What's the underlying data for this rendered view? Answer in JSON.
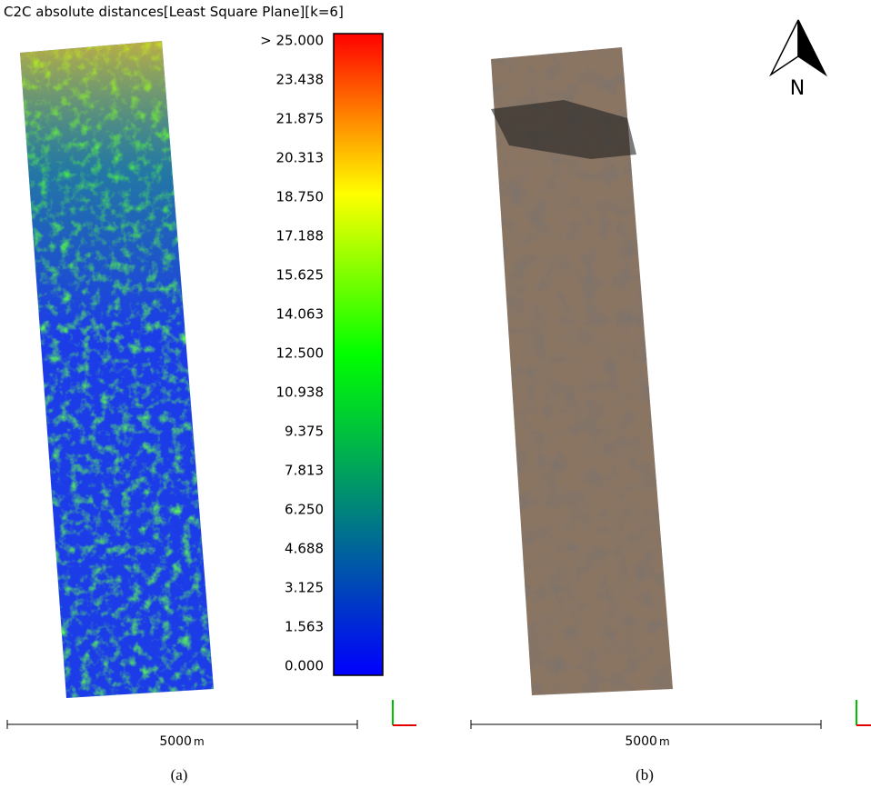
{
  "panel_a": {
    "title": "C2C absolute distances[Least Square Plane][k=6]",
    "colorbar": {
      "labels": [
        "> 25.000",
        "23.438",
        "21.875",
        "20.313",
        "18.750",
        "17.188",
        "15.625",
        "14.063",
        "12.500",
        "10.938",
        "9.375",
        "7.813",
        "6.250",
        "4.688",
        "3.125",
        "1.563",
        "0.000"
      ]
    },
    "scale_bar": {
      "value": "5000",
      "unit": "m"
    },
    "caption": "(a)"
  },
  "panel_b": {
    "north_label": "N",
    "scale_bar": {
      "value": "5000",
      "unit": "m"
    },
    "caption": "(b)"
  }
}
